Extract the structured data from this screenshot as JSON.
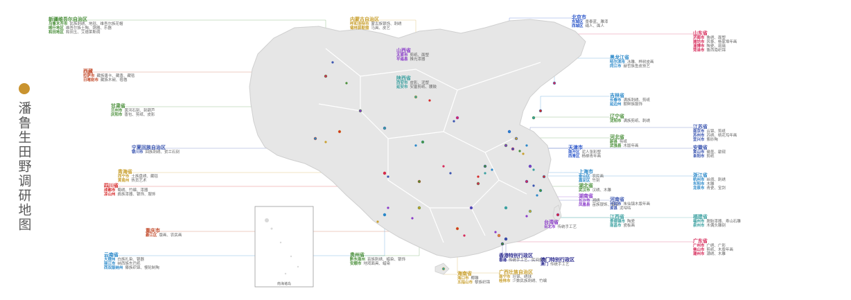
{
  "title": "潘鲁生田野调研地图",
  "colors": {
    "accent_dot": "#c9932f",
    "map_fill": "#e6e6e6",
    "map_stroke": "#ffffff",
    "inset_border": "#999999",
    "line_gray": "#bbbbbb"
  },
  "inset_label": "南海诸岛",
  "provinces": [
    {
      "name": "新疆维吾尔自治区",
      "color": "#4a8f3a",
      "rows": [
        [
          "乌鲁木齐市",
          "民族刺绣、地毯、维吾尔族花帽"
        ],
        [
          "喀什地区",
          "维吾尔族土陶、铜器、乐器"
        ],
        [
          "和田地区",
          "和田玉、艾德莱斯绸"
        ]
      ]
    },
    {
      "name": "西藏",
      "color": "#c24a2a",
      "rows": [
        [
          "拉萨市",
          "藏族唐卡、藏香、藏毯"
        ],
        [
          "日喀则市",
          "藏族木碗、氆氇"
        ]
      ]
    },
    {
      "name": "甘肃省",
      "color": "#4a8f3a",
      "rows": [
        [
          "兰州市",
          "黄河石刻、刻葫芦"
        ],
        [
          "庆阳市",
          "香包、剪纸、皮影"
        ]
      ]
    },
    {
      "name": "宁夏回族自治区",
      "color": "#3a55b0",
      "rows": [
        [
          "银川市",
          "回族刺绣、贺兰石刻"
        ]
      ]
    },
    {
      "name": "青海省",
      "color": "#c9a02f",
      "rows": [
        [
          "西宁市",
          "土族盘绣、藏毯"
        ],
        [
          "黄南州",
          "热贡艺术"
        ]
      ]
    },
    {
      "name": "四川省",
      "color": "#d62a2a",
      "rows": [
        [
          "成都市",
          "蜀绣、竹编、漆器"
        ],
        [
          "凉山州",
          "彝族漆器、银饰、服饰"
        ]
      ]
    },
    {
      "name": "重庆市",
      "color": "#c24a2a",
      "rows": [
        [
          "綦江区",
          "版画、农民画"
        ]
      ]
    },
    {
      "name": "云南省",
      "color": "#2a88c9",
      "rows": [
        [
          "大理州",
          "白族扎染、银器"
        ],
        [
          "丽江市",
          "纳西族东巴纸"
        ],
        [
          "西双版纳州",
          "傣族织锦、慢轮制陶"
        ]
      ]
    },
    {
      "name": "内蒙古自治区",
      "color": "#c9a02f",
      "rows": [
        [
          "呼和浩特市",
          "蒙古族银饰、刺绣"
        ],
        [
          "锡林郭勒盟",
          "马具、皮艺"
        ]
      ]
    },
    {
      "name": "山西省",
      "color": "#8a3ac9",
      "rows": [
        [
          "太原市",
          "剪纸、面塑"
        ],
        [
          "平遥县",
          "推光漆器"
        ]
      ]
    },
    {
      "name": "陕西省",
      "color": "#3aa0a0",
      "rows": [
        [
          "西安市",
          "皮影、泥塑"
        ],
        [
          "延安市",
          "安塞剪纸、腰鼓"
        ]
      ]
    },
    {
      "name": "贵州省",
      "color": "#4a8f3a",
      "rows": [
        [
          "黔东南州",
          "苗族刺绣、蜡染、银饰"
        ],
        [
          "安顺市",
          "地戏面具、蜡染"
        ]
      ]
    },
    {
      "name": "海南省",
      "color": "#c9a02f",
      "rows": [
        [
          "海口市",
          "椰雕"
        ],
        [
          "五指山市",
          "黎族织锦"
        ]
      ]
    },
    {
      "name": "广西壮族自治区",
      "color": "#c9a02f",
      "rows": [
        [
          "南宁市",
          "壮锦、绣球"
        ],
        [
          "桂林市",
          "少数民族刺绣、竹编"
        ]
      ]
    },
    {
      "name": "香港特别行政区",
      "color": "#2a2a8f",
      "rows": [
        [
          "香港",
          "传统手工艺、民间美术"
        ]
      ]
    },
    {
      "name": "澳门特别行政区",
      "color": "#2a2a8f",
      "rows": [
        [
          "澳门",
          "传统手工艺"
        ]
      ]
    },
    {
      "name": "北京市",
      "color": "#2a55c9",
      "rows": [
        [
          "东城区",
          "景泰蓝、雕漆"
        ],
        [
          "西城区",
          "绢人、面人"
        ]
      ]
    },
    {
      "name": "天津市",
      "color": "#2a55c9",
      "rows": [
        [
          "南开区",
          "泥人张彩塑"
        ],
        [
          "西青区",
          "杨柳青年画"
        ]
      ]
    },
    {
      "name": "河北省",
      "color": "#4a8f3a",
      "rows": [
        [
          "蔚县",
          "剪纸"
        ],
        [
          "武强县",
          "木版年画"
        ]
      ]
    },
    {
      "name": "辽宁省",
      "color": "#4a8f3a",
      "rows": [
        [
          "沈阳市",
          "满族剪纸、刺绣"
        ]
      ]
    },
    {
      "name": "吉林省",
      "color": "#2a88c9",
      "rows": [
        [
          "长春市",
          "满族刺绣、剪纸"
        ],
        [
          "延边州",
          "朝鲜族服饰"
        ]
      ]
    },
    {
      "name": "黑龙江省",
      "color": "#2a88c9",
      "rows": [
        [
          "哈尔滨市",
          "冰雕、桦树皮画"
        ],
        [
          "同江市",
          "赫哲族鱼皮技艺"
        ]
      ]
    },
    {
      "name": "山东省",
      "color": "#d62a5a",
      "rows": [
        [
          "济南市",
          "鲁绣、面塑"
        ],
        [
          "潍坊市",
          "风筝、杨家埠年画"
        ],
        [
          "淄博市",
          "陶瓷、琉璃"
        ],
        [
          "菏泽市",
          "鲁西南织锦"
        ]
      ]
    },
    {
      "name": "江苏省",
      "color": "#3a55b0",
      "rows": [
        [
          "南京市",
          "云锦、剪纸"
        ],
        [
          "苏州市",
          "苏绣、桃花坞年画"
        ],
        [
          "宜兴市",
          "紫砂陶"
        ]
      ]
    },
    {
      "name": "上海市",
      "color": "#2a88c9",
      "rows": [
        [
          "金山区",
          "农民画"
        ],
        [
          "嘉定区",
          "竹刻"
        ]
      ]
    },
    {
      "name": "安徽省",
      "color": "#3a55b0",
      "rows": [
        [
          "黄山市",
          "徽墨、歙砚"
        ],
        [
          "阜阳市",
          "剪纸"
        ]
      ]
    },
    {
      "name": "浙江省",
      "color": "#2a88c9",
      "rows": [
        [
          "杭州市",
          "丝绸、刺绣"
        ],
        [
          "东阳市",
          "木雕"
        ],
        [
          "龙泉市",
          "青瓷、宝剑"
        ]
      ]
    },
    {
      "name": "福建省",
      "color": "#3aa0a0",
      "rows": [
        [
          "福州市",
          "脱胎漆器、寿山石雕"
        ],
        [
          "泉州市",
          "木偶头雕刻"
        ]
      ]
    },
    {
      "name": "江西省",
      "color": "#3aa0a0",
      "rows": [
        [
          "景德镇市",
          "陶瓷"
        ],
        [
          "南昌市",
          "瓷板画"
        ]
      ]
    },
    {
      "name": "台湾省",
      "color": "#8a3ac9",
      "rows": [
        [
          "台北市",
          "传统手工艺"
        ]
      ]
    },
    {
      "name": "湖北省",
      "color": "#4a8f3a",
      "rows": [
        [
          "武汉市",
          "汉绣、木雕"
        ]
      ]
    },
    {
      "name": "湖南省",
      "color": "#8a3ac9",
      "rows": [
        [
          "长沙市",
          "湘绣"
        ],
        [
          "凤凰县",
          "苗族银饰、蜡染"
        ]
      ]
    },
    {
      "name": "河南省",
      "color": "#3a55b0",
      "rows": [
        [
          "开封市",
          "朱仙镇木版年画"
        ],
        [
          "浚县",
          "泥咕咕"
        ]
      ]
    },
    {
      "name": "广东省",
      "color": "#d62a5a",
      "rows": [
        [
          "广州市",
          "广绣、广彩"
        ],
        [
          "佛山市",
          "剪纸、木版年画"
        ],
        [
          "潮州市",
          "潮绣、木雕"
        ]
      ]
    }
  ]
}
